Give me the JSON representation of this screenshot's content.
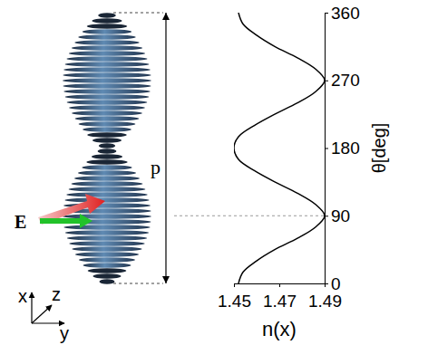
{
  "chart_data": {
    "type": "line",
    "x": [
      1.452,
      1.454,
      1.46,
      1.468,
      1.478,
      1.486,
      1.49,
      1.486,
      1.478,
      1.468,
      1.459,
      1.452,
      1.45,
      1.452,
      1.459,
      1.468,
      1.478,
      1.486,
      1.49,
      1.486,
      1.478,
      1.468,
      1.46,
      1.454,
      1.452
    ],
    "y": [
      0,
      15,
      30,
      45,
      60,
      75,
      90,
      105,
      120,
      135,
      150,
      165,
      180,
      195,
      210,
      225,
      240,
      255,
      270,
      285,
      300,
      315,
      330,
      345,
      360
    ],
    "color": "#000000",
    "xlim": [
      1.45,
      1.49
    ],
    "xticks": [
      1.45,
      1.47,
      1.49
    ],
    "ylim": [
      0,
      360
    ],
    "yticks": [
      0,
      90,
      180,
      270,
      360
    ],
    "xlabel": "n(x)",
    "ylabel": "θ[deg]",
    "annotations": [
      "p",
      "E",
      "x",
      "z",
      "y"
    ],
    "grid": false
  }
}
